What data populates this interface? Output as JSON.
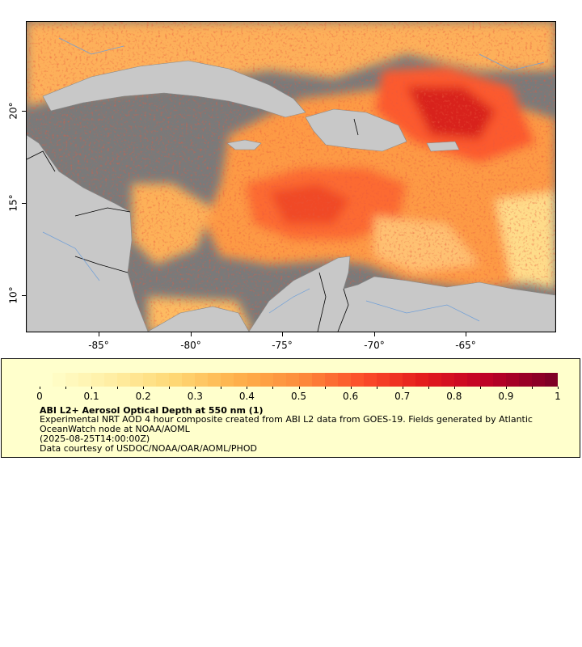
{
  "map": {
    "x_axis": {
      "ticks": [
        "-85°",
        "-80°",
        "-75°",
        "-70°",
        "-65°"
      ]
    },
    "y_axis": {
      "ticks": [
        "20°",
        "15°",
        "10°"
      ]
    },
    "colors": {
      "ocean_nodata": "#7a7a7a",
      "land": "#c8c8c8",
      "border": "#000000",
      "river": "#6f9fd8"
    }
  },
  "legend": {
    "colorbar": {
      "ticks": [
        "0",
        "0.1",
        "0.2",
        "0.3",
        "0.4",
        "0.5",
        "0.6",
        "0.7",
        "0.8",
        "0.9",
        "1"
      ],
      "range": [
        0,
        1
      ],
      "colors": [
        "#ffffcc",
        "#ffefa5",
        "#fed976",
        "#feb24c",
        "#fd8d3c",
        "#fc4e2a",
        "#e31a1c",
        "#bd0026",
        "#800026"
      ]
    },
    "title": "ABI L2+ Aerosol Optical Depth at 550 nm (1)",
    "description": "Experimental NRT AOD 4 hour composite created from ABI L2 data from GOES-19. Fields generated by Atlantic OceanWatch node at NOAA/AOML",
    "timestamp": "(2025-08-25T14:00:00Z)",
    "credit": "Data courtesy of USDOC/NOAA/OAR/AOML/PHOD"
  }
}
